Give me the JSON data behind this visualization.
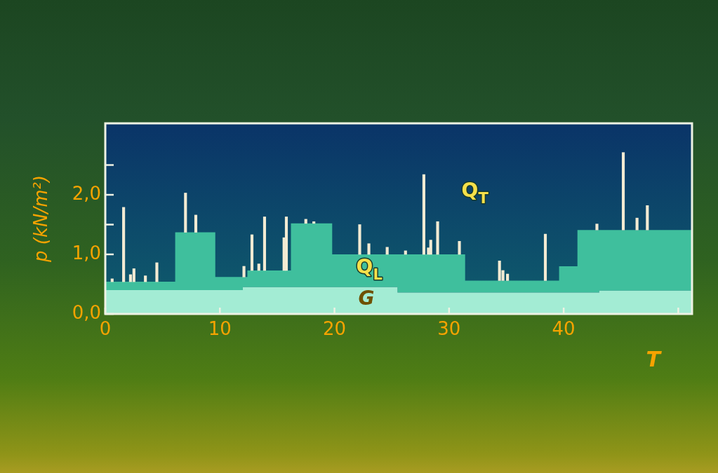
{
  "chart_data": {
    "type": "area",
    "ylabel": "p (kN/m²)",
    "xlabel": "T",
    "stacked": true,
    "xlim": [
      0,
      51.2
    ],
    "ylim": [
      0,
      3.2
    ],
    "xticks": [
      0,
      10,
      20,
      30,
      40,
      {
        "value": 50,
        "label": null
      }
    ],
    "yticks": [
      {
        "value": 0,
        "label": "0,0"
      },
      {
        "value": 1,
        "label": "1,0"
      },
      {
        "value": 1.5,
        "label": null
      },
      {
        "value": 2,
        "label": "2,0"
      },
      {
        "value": 2.5,
        "label": null
      }
    ],
    "series": [
      {
        "name": "G",
        "color": "#a3ecd4",
        "x": [
          0,
          6.1,
          6.1,
          9.6,
          9.6,
          12,
          12,
          12.4,
          12.4,
          16.2,
          16.2,
          19.8,
          19.8,
          25.5,
          25.5,
          31.4,
          31.4,
          39.6,
          39.6,
          41.2,
          41.2,
          43.1,
          43.1,
          51.2
        ],
        "values": [
          0.4,
          0.4,
          0.4,
          0.4,
          0.4,
          0.4,
          0.45,
          0.45,
          0.45,
          0.45,
          0.45,
          0.45,
          0.45,
          0.45,
          0.36,
          0.36,
          0.36,
          0.36,
          0.36,
          0.36,
          0.36,
          0.36,
          0.39,
          0.39
        ]
      },
      {
        "name": "Q$_{L}$",
        "color": "#3fbf9d",
        "x": [
          0,
          6.1,
          6.1,
          9.6,
          9.6,
          12,
          12,
          12.4,
          12.4,
          16.2,
          16.2,
          19.8,
          19.8,
          25.5,
          25.5,
          31.4,
          31.4,
          39.6,
          39.6,
          41.2,
          41.2,
          43.1,
          43.1,
          51.2
        ],
        "values": [
          0.14,
          0.14,
          0.97,
          0.97,
          0.22,
          0.22,
          0.17,
          0.17,
          0.28,
          0.28,
          1.07,
          1.07,
          0.55,
          0.55,
          0.64,
          0.64,
          0.2,
          0.2,
          0.44,
          0.44,
          1.05,
          1.05,
          1.02,
          1.02
        ]
      },
      {
        "name": "Q$_{T}$",
        "type": "bar",
        "color": "#f3ebd3",
        "x": [
          0.6,
          1.6,
          2.2,
          2.5,
          3.5,
          4.5,
          7.0,
          7.9,
          12.1,
          12.8,
          13.4,
          13.9,
          15.6,
          15.8,
          17.5,
          18.2,
          22.2,
          23.0,
          24.6,
          26.2,
          27.8,
          28.2,
          28.4,
          29.0,
          30.9,
          34.4,
          34.7,
          35.1,
          38.4,
          42.9,
          45.2,
          46.4,
          47.3
        ],
        "base": [
          0.54,
          0.54,
          0.54,
          0.54,
          0.54,
          0.54,
          1.37,
          1.37,
          0.62,
          0.73,
          0.73,
          0.73,
          0.73,
          0.73,
          1.52,
          1.52,
          1.0,
          1.0,
          1.0,
          1.0,
          1.0,
          1.0,
          1.0,
          1.0,
          1.0,
          0.56,
          0.56,
          0.56,
          0.56,
          1.41,
          1.41,
          1.41,
          1.41
        ],
        "values": [
          0.05,
          1.25,
          0.12,
          0.22,
          0.1,
          0.32,
          0.66,
          0.29,
          0.18,
          0.6,
          0.11,
          0.9,
          0.55,
          0.9,
          0.07,
          0.03,
          0.5,
          0.18,
          0.12,
          0.06,
          1.34,
          0.11,
          0.24,
          0.55,
          0.22,
          0.33,
          0.17,
          0.11,
          0.78,
          0.1,
          1.3,
          0.2,
          0.41
        ]
      }
    ]
  }
}
